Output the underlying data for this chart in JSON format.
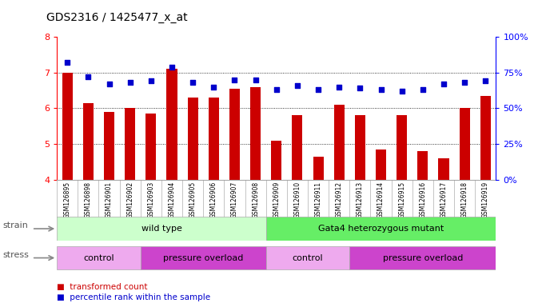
{
  "title": "GDS2316 / 1425477_x_at",
  "samples": [
    "GSM126895",
    "GSM126898",
    "GSM126901",
    "GSM126902",
    "GSM126903",
    "GSM126904",
    "GSM126905",
    "GSM126906",
    "GSM126907",
    "GSM126908",
    "GSM126909",
    "GSM126910",
    "GSM126911",
    "GSM126912",
    "GSM126913",
    "GSM126914",
    "GSM126915",
    "GSM126916",
    "GSM126917",
    "GSM126918",
    "GSM126919"
  ],
  "bar_values": [
    7.0,
    6.15,
    5.9,
    6.0,
    5.85,
    7.1,
    6.3,
    6.3,
    6.55,
    6.6,
    5.1,
    5.8,
    4.65,
    6.1,
    5.8,
    4.85,
    5.8,
    4.8,
    4.6,
    6.0,
    6.35
  ],
  "dot_values": [
    82,
    72,
    67,
    68,
    69,
    79,
    68,
    65,
    70,
    70,
    63,
    66,
    63,
    65,
    64,
    63,
    62,
    63,
    67,
    68,
    69
  ],
  "ylim": [
    4,
    8
  ],
  "y2lim": [
    0,
    100
  ],
  "yticks": [
    4,
    5,
    6,
    7,
    8
  ],
  "y2ticks": [
    0,
    25,
    50,
    75,
    100
  ],
  "bar_color": "#cc0000",
  "dot_color": "#0000cc",
  "background_color": "#ffffff",
  "plot_bg": "#ffffff",
  "tick_bg": "#cccccc",
  "strain_wt_label": "wild type",
  "strain_mut_label": "Gata4 heterozygous mutant",
  "strain_wt_color": "#ccffcc",
  "strain_mut_color": "#66ee66",
  "stress_ctrl_color": "#eeaaee",
  "stress_po_color": "#cc44cc",
  "strain_label": "strain",
  "stress_label": "stress",
  "legend_bar": "transformed count",
  "legend_dot": "percentile rank within the sample",
  "wt_count": 10,
  "mut_count": 11,
  "ctrl1_count": 4,
  "po1_count": 6,
  "ctrl2_count": 4,
  "po2_count": 7,
  "stress_labels": [
    "control",
    "pressure overload",
    "control",
    "pressure overload"
  ]
}
